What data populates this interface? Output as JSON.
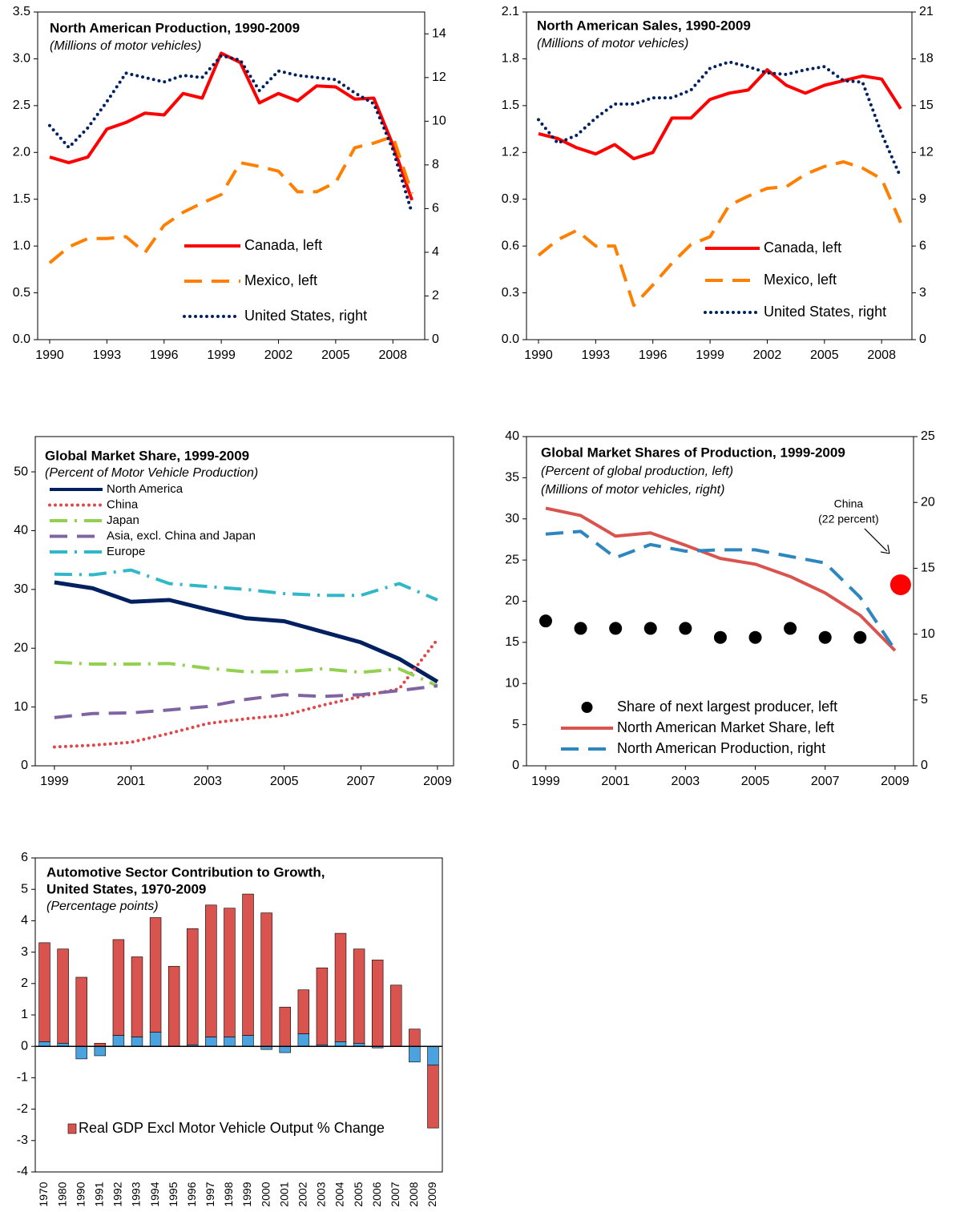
{
  "chart_data": [
    {
      "type": "line",
      "title": "North American Production, 1990-2009",
      "subtitle": "(Millions of motor vehicles)",
      "x": [
        1990,
        1991,
        1992,
        1993,
        1994,
        1995,
        1996,
        1997,
        1998,
        1999,
        2000,
        2001,
        2002,
        2003,
        2004,
        2005,
        2006,
        2007,
        2008,
        2009
      ],
      "xlim": [
        1989.37,
        2009.67
      ],
      "xticks": [
        1990,
        1993,
        1996,
        1999,
        2002,
        2005,
        2008
      ],
      "ylim": [
        0,
        3.5
      ],
      "yticks": [
        {
          "value": 0,
          "label": "0.0"
        },
        0.5,
        {
          "value": 1,
          "label": "1.0"
        },
        1.5,
        {
          "value": 2,
          "label": "2.0"
        },
        2.5,
        {
          "value": 3,
          "label": "3.0"
        },
        3.5
      ],
      "y2lim": [
        0,
        15
      ],
      "y2ticks": [
        0,
        2,
        4,
        6,
        8,
        10,
        12,
        14
      ],
      "legend": "lower right",
      "series": [
        {
          "name": "Canada, left",
          "color": "#ff0000",
          "dash": "solid",
          "values": [
            1.95,
            1.89,
            1.95,
            2.25,
            2.32,
            2.42,
            2.4,
            2.63,
            2.58,
            3.06,
            2.96,
            2.53,
            2.63,
            2.55,
            2.71,
            2.7,
            2.57,
            2.58,
            2.08,
            1.49
          ]
        },
        {
          "name": "Mexico, left",
          "color": "#ff7f00",
          "dash": "dash",
          "values": [
            0.82,
            0.99,
            1.08,
            1.08,
            1.1,
            0.93,
            1.22,
            1.36,
            1.46,
            1.55,
            1.89,
            1.85,
            1.8,
            1.58,
            1.58,
            1.68,
            2.05,
            2.1,
            2.17,
            1.56
          ]
        },
        {
          "name": "United States, right",
          "color": "#002060",
          "dash": "dot",
          "axis": "y2",
          "values": [
            9.8,
            8.8,
            9.7,
            10.9,
            12.2,
            12.0,
            11.8,
            12.1,
            12.0,
            13.0,
            12.8,
            11.4,
            12.3,
            12.1,
            12.0,
            11.9,
            11.3,
            10.8,
            8.7,
            5.8
          ]
        }
      ]
    },
    {
      "type": "line",
      "title": "North American Sales, 1990-2009",
      "subtitle": "(Millions of motor vehicles)",
      "x": [
        1990,
        1991,
        1992,
        1993,
        1994,
        1995,
        1996,
        1997,
        1998,
        1999,
        2000,
        2001,
        2002,
        2003,
        2004,
        2005,
        2006,
        2007,
        2008,
        2009
      ],
      "xlim": [
        1989.37,
        2009.59
      ],
      "xticks": [
        1990,
        1993,
        1996,
        1999,
        2002,
        2005,
        2008
      ],
      "ylim": [
        0,
        2.1
      ],
      "yticks": [
        {
          "value": 0,
          "label": "0.0"
        },
        0.3,
        0.6,
        0.9,
        1.2,
        1.5,
        1.8,
        2.1
      ],
      "y2lim": [
        0,
        21
      ],
      "y2ticks": [
        0,
        3,
        6,
        9,
        12,
        15,
        18,
        21
      ],
      "legend": "lower right",
      "series": [
        {
          "name": "Canada, left",
          "color": "#ff0000",
          "dash": "solid",
          "values": [
            1.32,
            1.29,
            1.23,
            1.19,
            1.25,
            1.16,
            1.2,
            1.42,
            1.42,
            1.54,
            1.58,
            1.6,
            1.73,
            1.63,
            1.58,
            1.63,
            1.66,
            1.69,
            1.67,
            1.48
          ]
        },
        {
          "name": "Mexico, left",
          "color": "#ff7f00",
          "dash": "dash",
          "values": [
            0.54,
            0.64,
            0.7,
            0.6,
            0.6,
            0.22,
            0.35,
            0.49,
            0.61,
            0.66,
            0.86,
            0.92,
            0.97,
            0.98,
            1.06,
            1.11,
            1.14,
            1.1,
            1.03,
            0.75
          ]
        },
        {
          "name": "United States, right",
          "color": "#002060",
          "dash": "dot",
          "axis": "y2",
          "values": [
            14.1,
            12.6,
            13.1,
            14.2,
            15.1,
            15.1,
            15.5,
            15.5,
            16.0,
            17.4,
            17.8,
            17.5,
            17.1,
            17.0,
            17.3,
            17.5,
            16.6,
            16.5,
            13.2,
            10.4
          ]
        }
      ]
    },
    {
      "type": "line",
      "title": "Global Market Share, 1999-2009",
      "subtitle": "(Percent of Motor Vehicle Production)",
      "x": [
        1999,
        2000,
        2001,
        2002,
        2003,
        2004,
        2005,
        2006,
        2007,
        2008,
        2009
      ],
      "xlim": [
        1998.5,
        2009.42
      ],
      "xticks": [
        1999,
        2001,
        2003,
        2005,
        2007,
        2009
      ],
      "ylim": [
        0,
        56
      ],
      "yticks": [
        0,
        10,
        20,
        30,
        40,
        50
      ],
      "legend": "upper left",
      "series": [
        {
          "name": "North America",
          "color": "#002060",
          "dash": "solid",
          "values": [
            31.2,
            30.2,
            27.9,
            28.2,
            26.6,
            25.1,
            24.6,
            22.8,
            21.0,
            18.2,
            14.3
          ]
        },
        {
          "name": "China",
          "color": "#e0474c",
          "dash": "dot",
          "values": [
            3.2,
            3.5,
            4.0,
            5.5,
            7.2,
            8.0,
            8.6,
            10.3,
            11.8,
            13.1,
            21.5
          ]
        },
        {
          "name": "Japan",
          "color": "#92d050",
          "dash": "dashdot",
          "values": [
            17.6,
            17.3,
            17.3,
            17.4,
            16.6,
            16.0,
            16.0,
            16.5,
            15.9,
            16.5,
            13.6
          ]
        },
        {
          "name": "Asia, excl. China and Japan",
          "color": "#8064a2",
          "dash": "dash",
          "values": [
            8.2,
            8.9,
            9.0,
            9.5,
            10.1,
            11.3,
            12.1,
            11.8,
            12.1,
            12.8,
            13.6
          ]
        },
        {
          "name": "Europe",
          "color": "#31b8c8",
          "dash": "dashdot",
          "values": [
            32.6,
            32.5,
            33.3,
            31.0,
            30.5,
            30.0,
            29.3,
            29.0,
            29.0,
            31.0,
            28.2
          ]
        }
      ]
    },
    {
      "type": "line",
      "title": "Global Market Shares of Production, 1999-2009",
      "subtitle": [
        "(Percent of global production, left)",
        "(Millions of motor vehicles, right)"
      ],
      "x": [
        1999,
        2000,
        2001,
        2002,
        2003,
        2004,
        2005,
        2006,
        2007,
        2008,
        2009
      ],
      "xlim": [
        1998.45,
        2009.53
      ],
      "xticks": [
        1999,
        2001,
        2003,
        2005,
        2007,
        2009
      ],
      "ylim": [
        0,
        40
      ],
      "yticks": [
        0,
        5,
        10,
        15,
        20,
        25,
        30,
        35,
        40
      ],
      "y2lim": [
        0,
        25
      ],
      "y2ticks": [
        0,
        5,
        10,
        15,
        20,
        25
      ],
      "legend": "lower left",
      "series": [
        {
          "name": "Share of next largest producer, left",
          "color": "#000000",
          "dash": "markers",
          "values": [
            17.6,
            16.7,
            16.7,
            16.7,
            16.7,
            15.6,
            15.6,
            16.7,
            15.6,
            15.6,
            null
          ]
        },
        {
          "name": "North American Market Share, left",
          "color": "#d9534f",
          "dash": "solid",
          "values": [
            31.3,
            30.4,
            27.9,
            28.3,
            26.8,
            25.2,
            24.5,
            23.0,
            21.0,
            18.3,
            14.0
          ]
        },
        {
          "name": "North American Production, right",
          "color": "#2e86c1",
          "dash": "dash",
          "axis": "y2",
          "values": [
            17.6,
            17.8,
            15.8,
            16.8,
            16.3,
            16.4,
            16.4,
            15.9,
            15.4,
            12.8,
            8.8
          ]
        }
      ],
      "annotation": {
        "text": [
          "China",
          "(22 percent)"
        ],
        "x": 2009,
        "value": 22,
        "color": "#ff0000"
      }
    },
    {
      "type": "bar",
      "title": [
        "Automotive Sector Contribution to Growth,",
        "United States, 1970-2009"
      ],
      "subtitle": "(Percentage points)",
      "categories": [
        "1970",
        "1980",
        "1990",
        "1991",
        "1992",
        "1993",
        "1994",
        "1995",
        "1996",
        "1997",
        "1998",
        "1999",
        "2000",
        "2001",
        "2002",
        "2003",
        "2004",
        "2005",
        "2006",
        "2007",
        "2008",
        "2009"
      ],
      "ylim": [
        -4,
        6
      ],
      "yticks": [
        -4,
        -3,
        -2,
        -1,
        0,
        1,
        2,
        3,
        4,
        5,
        6
      ],
      "legend": "lower left",
      "stacked": true,
      "series": [
        {
          "color": "#4aa3df",
          "values": [
            0.15,
            0.1,
            -0.4,
            -0.3,
            0.35,
            0.3,
            0.45,
            0.0,
            0.05,
            0.3,
            0.3,
            0.35,
            -0.1,
            -0.2,
            0.4,
            0.05,
            0.15,
            0.1,
            -0.05,
            0.0,
            -0.5,
            -0.6
          ]
        },
        {
          "name": "Real GDP Excl Motor Vehicle Output % Change",
          "color": "#d9534f",
          "values": [
            3.15,
            3.0,
            2.2,
            0.1,
            3.05,
            2.55,
            3.65,
            2.55,
            3.7,
            4.2,
            4.1,
            4.5,
            4.25,
            1.25,
            1.4,
            2.45,
            3.45,
            3.0,
            2.75,
            1.95,
            0.55,
            -2.0
          ]
        }
      ]
    }
  ]
}
